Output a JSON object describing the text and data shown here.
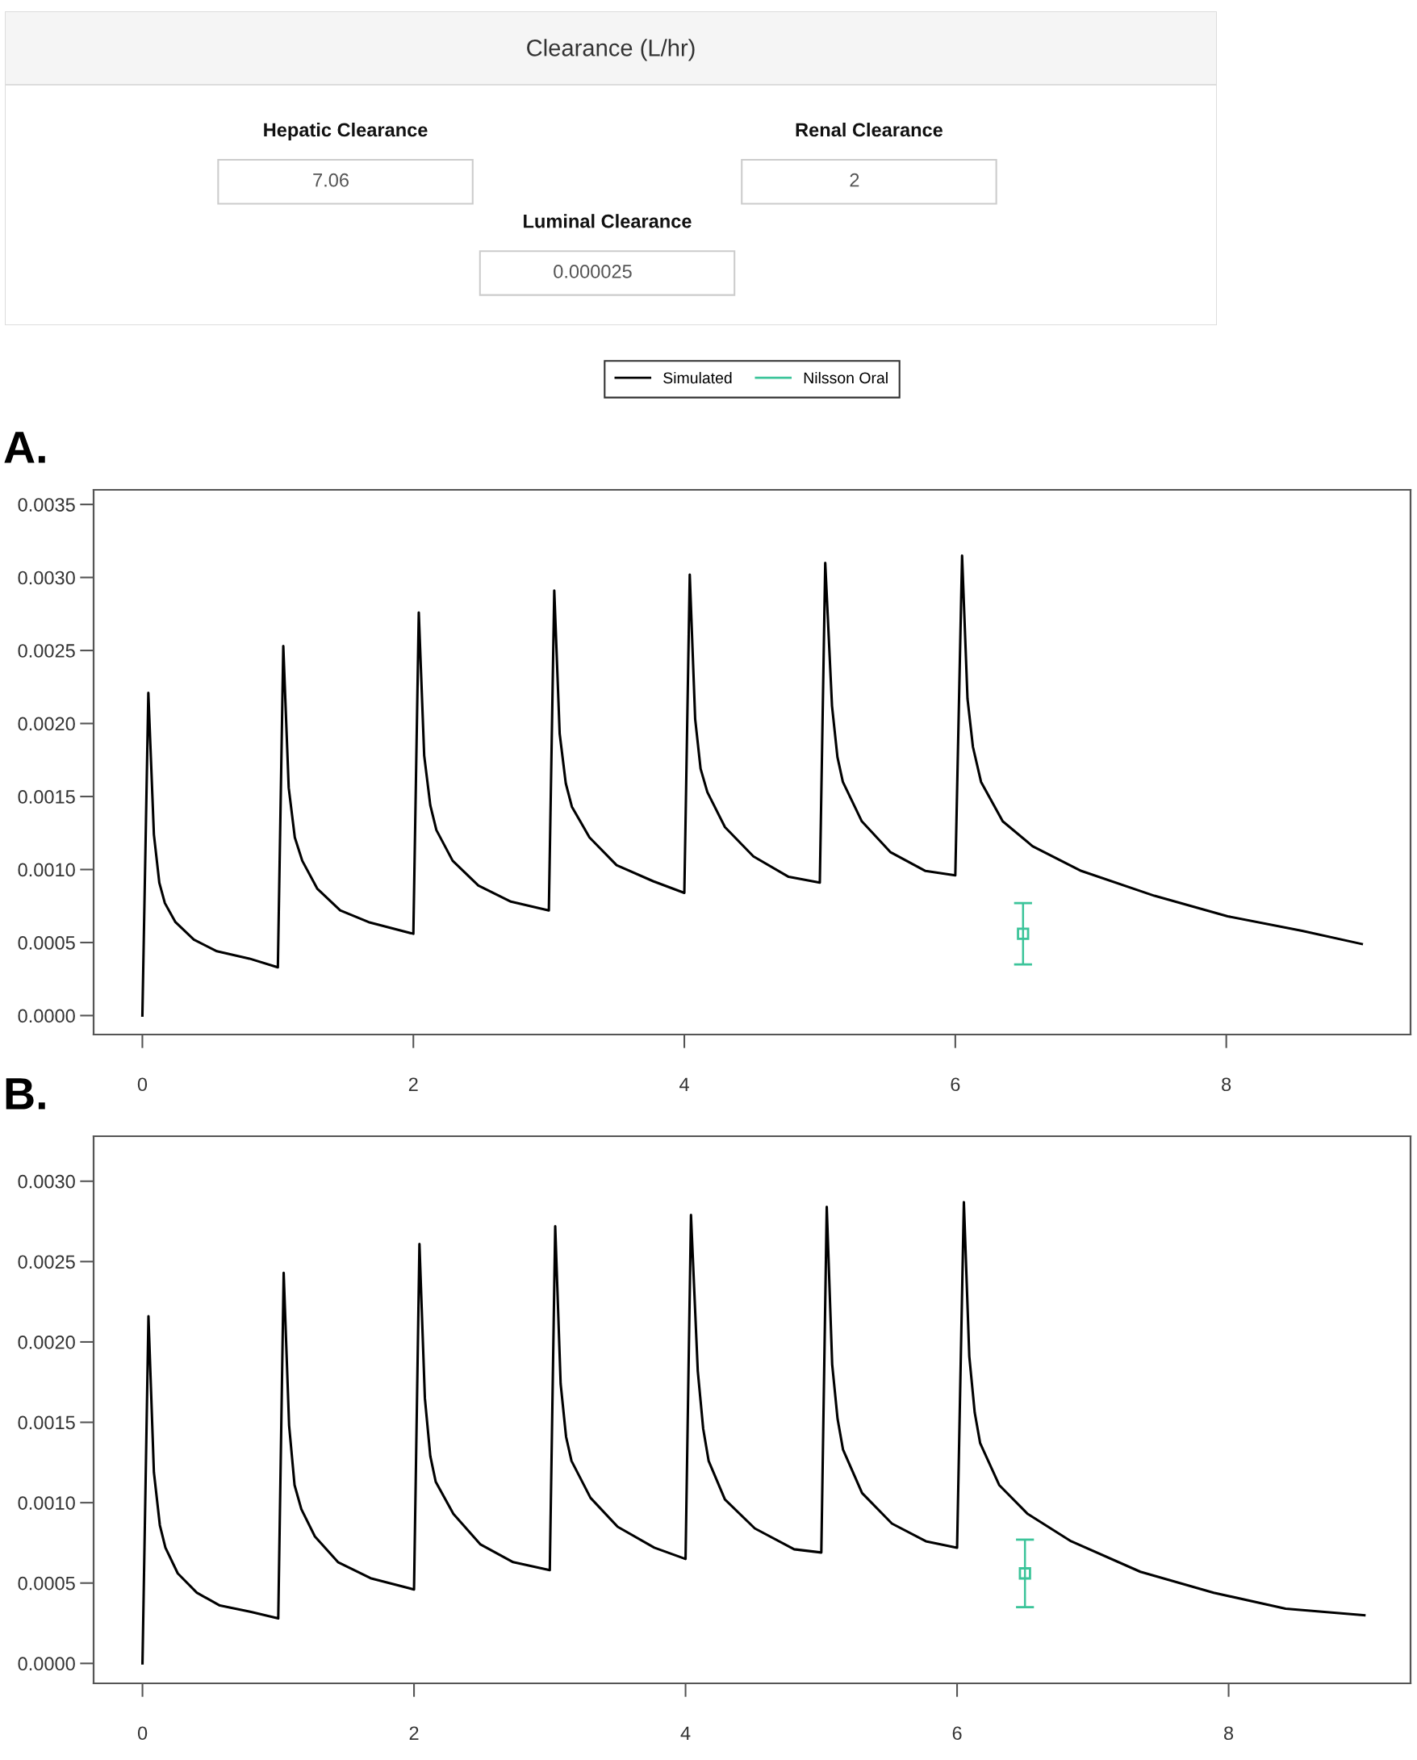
{
  "chart_data": [
    {
      "type": "other",
      "title": "Clearance (L/hr)",
      "annotations": [
        "Hepatic Clearance",
        "7.06",
        "Renal Clearance",
        "2",
        "Luminal Clearance",
        "0.000025"
      ]
    },
    {
      "type": "line",
      "title": "A.",
      "legend": "top",
      "xlim": [
        -0.36,
        9.36
      ],
      "ylim": [
        -0.00013,
        0.0036
      ],
      "xticks": [
        0,
        2,
        4,
        6,
        8
      ],
      "yticks": [
        {
          "value": 0,
          "label": "0.0000"
        },
        {
          "value": 0.0005,
          "label": "0.0005"
        },
        {
          "value": 0.001,
          "label": "0.0010"
        },
        {
          "value": 0.0015,
          "label": "0.0015"
        },
        {
          "value": 0.002,
          "label": "0.0020"
        },
        {
          "value": 0.0025,
          "label": "0.0025"
        },
        {
          "value": 0.003,
          "label": "0.0030"
        },
        {
          "value": 0.0035,
          "label": "0.0035"
        }
      ],
      "series": [
        {
          "name": "Simulated",
          "type": "line",
          "color": "#000000",
          "x": [
            0,
            0.044,
            0.085,
            0.125,
            0.166,
            0.244,
            0.38,
            0.55,
            0.79,
            1.0,
            1.04,
            1.08,
            1.125,
            1.18,
            1.29,
            1.46,
            1.67,
            2.0,
            2.04,
            2.08,
            2.125,
            2.17,
            2.29,
            2.48,
            2.72,
            3.0,
            3.04,
            3.08,
            3.125,
            3.17,
            3.3,
            3.5,
            3.77,
            4.0,
            4.04,
            4.08,
            4.12,
            4.17,
            4.3,
            4.51,
            4.77,
            5.0,
            5.04,
            5.09,
            5.13,
            5.17,
            5.31,
            5.52,
            5.78,
            6.0,
            6.05,
            6.09,
            6.13,
            6.19,
            6.35,
            6.57,
            6.93,
            7.47,
            8.01,
            8.56,
            9.0
          ],
          "values": [
            0,
            0.00221,
            0.00124,
            0.00091,
            0.00077,
            0.00064,
            0.00052,
            0.00044,
            0.00039,
            0.00033,
            0.00253,
            0.00156,
            0.00122,
            0.00106,
            0.00087,
            0.00072,
            0.00064,
            0.00056,
            0.00276,
            0.00178,
            0.00144,
            0.00127,
            0.00106,
            0.00089,
            0.00078,
            0.00072,
            0.00291,
            0.00193,
            0.00159,
            0.00143,
            0.00122,
            0.00103,
            0.00092,
            0.00084,
            0.00302,
            0.00203,
            0.00169,
            0.00153,
            0.00129,
            0.00109,
            0.00095,
            0.00091,
            0.0031,
            0.00212,
            0.00177,
            0.0016,
            0.00133,
            0.00112,
            0.00099,
            0.00096,
            0.00315,
            0.00217,
            0.00184,
            0.0016,
            0.00133,
            0.00116,
            0.00099,
            0.00082,
            0.00068,
            0.00058,
            0.00049
          ]
        },
        {
          "name": "Nilsson Oral",
          "type": "scatter",
          "marker": "square",
          "color": "#3cc49a",
          "x": [
            6.5
          ],
          "values": [
            0.00056
          ],
          "errors": [
            0.00021
          ]
        }
      ]
    },
    {
      "type": "line",
      "title": "B.",
      "xlim": [
        -0.36,
        9.34
      ],
      "ylim": [
        -0.000124,
        0.00328
      ],
      "xticks": [
        0,
        2,
        4,
        6,
        8
      ],
      "yticks": [
        {
          "value": 0,
          "label": "0.0000"
        },
        {
          "value": 0.0005,
          "label": "0.0005"
        },
        {
          "value": 0.001,
          "label": "0.0010"
        },
        {
          "value": 0.0015,
          "label": "0.0015"
        },
        {
          "value": 0.002,
          "label": "0.0020"
        },
        {
          "value": 0.0025,
          "label": "0.0025"
        },
        {
          "value": 0.003,
          "label": "0.0030"
        }
      ],
      "series": [
        {
          "type": "line",
          "color": "#000000",
          "x": [
            0,
            0.044,
            0.084,
            0.128,
            0.169,
            0.26,
            0.4,
            0.57,
            0.8,
            1.0,
            1.04,
            1.08,
            1.12,
            1.17,
            1.27,
            1.44,
            1.68,
            2.0,
            2.04,
            2.08,
            2.12,
            2.16,
            2.29,
            2.49,
            2.73,
            3.0,
            3.04,
            3.08,
            3.12,
            3.16,
            3.3,
            3.5,
            3.77,
            4.0,
            4.04,
            4.09,
            4.13,
            4.17,
            4.29,
            4.51,
            4.8,
            5.0,
            5.04,
            5.08,
            5.12,
            5.16,
            5.3,
            5.52,
            5.77,
            6.0,
            6.05,
            6.09,
            6.13,
            6.17,
            6.31,
            6.52,
            6.84,
            7.35,
            7.89,
            8.42,
            9.0
          ],
          "values": [
            0,
            0.00216,
            0.00119,
            0.00086,
            0.00072,
            0.00056,
            0.00044,
            0.00036,
            0.00032,
            0.00028,
            0.00243,
            0.00148,
            0.00111,
            0.00096,
            0.00079,
            0.00063,
            0.00053,
            0.00046,
            0.00261,
            0.00165,
            0.00129,
            0.00113,
            0.00093,
            0.00074,
            0.00063,
            0.00058,
            0.00272,
            0.00174,
            0.00141,
            0.00126,
            0.00103,
            0.00085,
            0.00072,
            0.00065,
            0.00279,
            0.00182,
            0.00146,
            0.00126,
            0.00102,
            0.00084,
            0.00071,
            0.00069,
            0.00284,
            0.00186,
            0.00152,
            0.00133,
            0.00106,
            0.00087,
            0.00076,
            0.00072,
            0.00287,
            0.00191,
            0.00156,
            0.00137,
            0.00111,
            0.00093,
            0.00076,
            0.00057,
            0.00044,
            0.00034,
            0.0003
          ]
        },
        {
          "type": "scatter",
          "marker": "square",
          "color": "#3cc49a",
          "x": [
            6.5
          ],
          "values": [
            0.00056
          ],
          "errors": [
            0.00021
          ]
        }
      ]
    }
  ]
}
